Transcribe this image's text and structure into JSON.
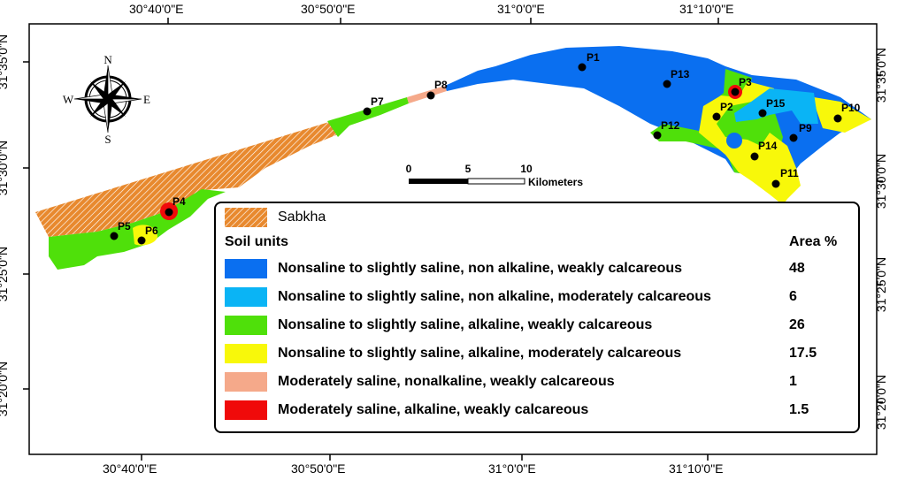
{
  "axes": {
    "top": [
      "30°40'0\"E",
      "30°50'0\"E",
      "31°0'0\"E",
      "31°10'0\"E"
    ],
    "bottom": [
      "30°40'0\"E",
      "30°50'0\"E",
      "31°0'0\"E",
      "31°10'0\"E"
    ],
    "left": [
      "31°35'0\"N",
      "31°30'0\"N",
      "31°25'0\"N",
      "31°20'0\"N"
    ],
    "right": [
      "31°35'0\"N",
      "31°30'0\"N",
      "31°25'0\"N",
      "31°20'0\"N"
    ]
  },
  "compass": {
    "n": "N",
    "s": "S",
    "e": "E",
    "w": "W"
  },
  "scale_bar": {
    "ticks": [
      "0",
      "5",
      "10"
    ],
    "unit": "Kilometers"
  },
  "points": [
    "P1",
    "P2",
    "P3",
    "P4",
    "P5",
    "P6",
    "P7",
    "P8",
    "P9",
    "P10",
    "P11",
    "P12",
    "P13",
    "P14",
    "P15"
  ],
  "legend": {
    "sabkha": "Sabkha",
    "title": "Soil units",
    "area_header": "Area %",
    "units": [
      {
        "label": "Nonsaline to slightly saline, non alkaline, weakly calcareous",
        "area": "48",
        "color": "#0a6ff0"
      },
      {
        "label": "Nonsaline to slightly saline, non alkaline, moderately calcareous",
        "area": "6",
        "color": "#0ab4f5"
      },
      {
        "label": "Nonsaline to slightly saline, alkaline, weakly calcareous",
        "area": "26",
        "color": "#4fe00a"
      },
      {
        "label": "Nonsaline to slightly saline, alkaline, moderately calcareous",
        "area": "17.5",
        "color": "#f8f80a"
      },
      {
        "label": "Moderately saline, nonalkaline, weakly calcareous",
        "area": "1",
        "color": "#f5a98a"
      },
      {
        "label": "Moderately saline, alkaline, weakly calcareous",
        "area": "1.5",
        "color": "#f00a0a"
      }
    ]
  }
}
